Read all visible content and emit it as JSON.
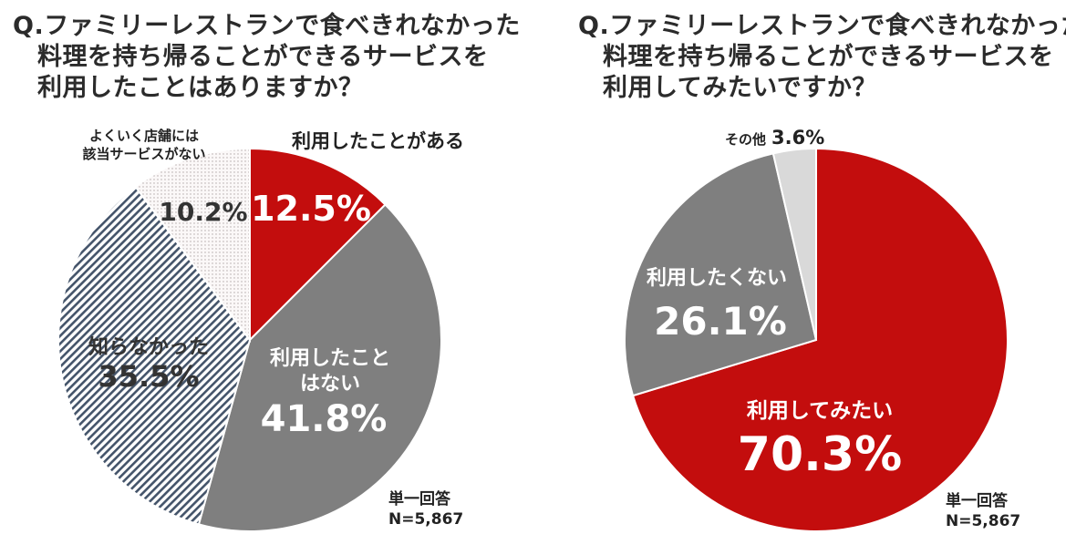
{
  "charts": [
    {
      "question_lines": [
        "Q.ファミリーレストランで食べきれなかった",
        "料理を持ち帰ることができるサービスを",
        "利用したことはありますか？"
      ],
      "note": {
        "line1": "単一回答",
        "line2": "N=5,867"
      }
    },
    {
      "question_lines": [
        "Q.ファミリーレストランで食べきれなかった",
        "料理を持ち帰ることができるサービスを",
        "利用してみたいですか？"
      ],
      "note": {
        "line1": "単一回答",
        "line2": "N=5,867"
      }
    }
  ],
  "colors": {
    "red": "#c30d0d",
    "gray": "#7f7f7f",
    "light_gray": "#d9d9d9",
    "hatch": "#44546a",
    "dot": "#b0a6a6"
  },
  "chart_data": [
    {
      "type": "pie",
      "title": "Q.ファミリーレストランで食べきれなかった料理を持ち帰ることができるサービスを利用したことはありますか？",
      "start": "12 o'clock, clockwise",
      "slices": [
        {
          "label_lines": [
            "利用したことがある"
          ],
          "value": 12.5,
          "value_text": "12.5%",
          "fill": "red"
        },
        {
          "label_lines": [
            "利用したこと",
            "はない"
          ],
          "value": 41.8,
          "value_text": "41.8%",
          "fill": "gray"
        },
        {
          "label_lines": [
            "知らなかった"
          ],
          "value": 35.5,
          "value_text": "35.5%",
          "fill": "hatch"
        },
        {
          "label_lines": [
            "よくいく店舗には",
            "該当サービスがない"
          ],
          "value": 10.2,
          "value_text": "10.2%",
          "fill": "dots"
        }
      ]
    },
    {
      "type": "pie",
      "title": "Q.ファミリーレストランで食べきれなかった料理を持ち帰ることができるサービスを利用してみたいですか？",
      "start": "12 o'clock, clockwise",
      "slices": [
        {
          "label_lines": [
            "利用してみたい"
          ],
          "value": 70.3,
          "value_text": "70.3%",
          "fill": "red"
        },
        {
          "label_lines": [
            "利用したくない"
          ],
          "value": 26.1,
          "value_text": "26.1%",
          "fill": "gray"
        },
        {
          "label_lines": [
            "その他"
          ],
          "value": 3.6,
          "value_text": "3.6%",
          "fill": "light_gray"
        }
      ]
    }
  ]
}
